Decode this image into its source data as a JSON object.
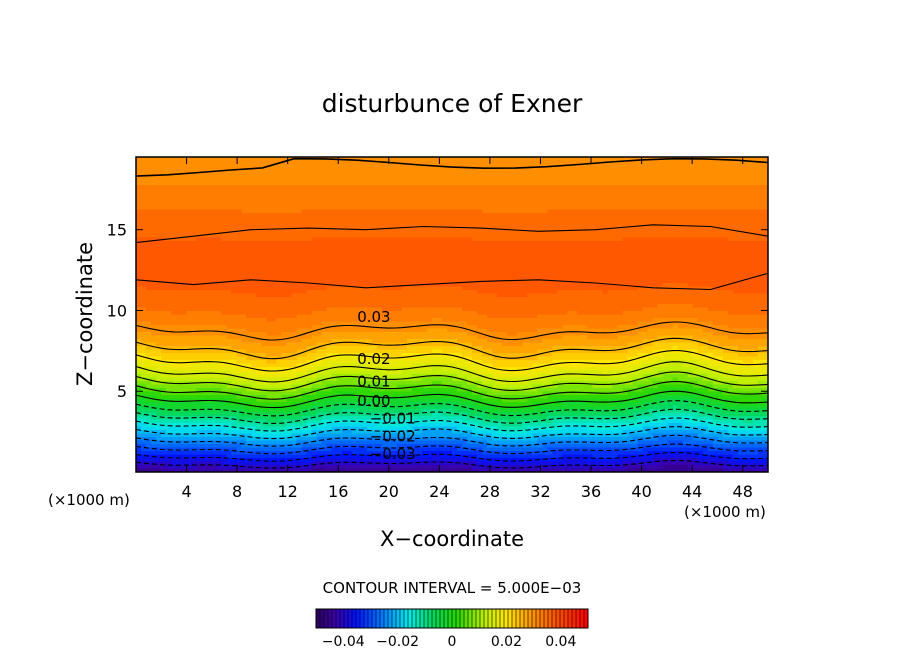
{
  "chart_data": {
    "type": "heatmap",
    "title": "disturbunce of Exner",
    "xlabel": "X−coordinate",
    "ylabel": "Z−coordinate",
    "x_unit_left": "(×1000 m)",
    "x_unit_right": "(×1000 m)",
    "xlim": [
      0,
      50
    ],
    "ylim": [
      0,
      19.5
    ],
    "x_ticks": [
      4,
      8,
      12,
      16,
      20,
      24,
      28,
      32,
      36,
      40,
      44,
      48
    ],
    "x_tick_labels": [
      "4",
      "8",
      "12",
      "16",
      "20",
      "24",
      "28",
      "32",
      "36",
      "40",
      "44",
      "48"
    ],
    "y_ticks": [
      5,
      10,
      15
    ],
    "y_tick_labels": [
      "5",
      "10",
      "15"
    ],
    "contour_interval_text": "CONTOUR INTERVAL = 5.000E−03",
    "contour_labels": [
      {
        "text": "0.03",
        "value": 0.03,
        "x": 17.5,
        "z": 9.6
      },
      {
        "text": "0.02",
        "value": 0.02,
        "x": 17.5,
        "z": 7.0
      },
      {
        "text": "0.01",
        "value": 0.01,
        "x": 17.5,
        "z": 5.6
      },
      {
        "text": "0.00",
        "value": 0.0,
        "x": 17.5,
        "z": 4.4
      },
      {
        "text": "−0.01",
        "value": -0.01,
        "x": 18.5,
        "z": 3.3
      },
      {
        "text": "−0.02",
        "value": -0.02,
        "x": 18.5,
        "z": 2.2
      },
      {
        "text": "−0.03",
        "value": -0.03,
        "x": 18.5,
        "z": 1.1
      }
    ],
    "colorbar": {
      "min": -0.05,
      "max": 0.05,
      "ticks": [
        -0.04,
        -0.02,
        0,
        0.02,
        0.04
      ],
      "tick_labels": [
        "−0.04",
        "−0.02",
        "0",
        "0.02",
        "0.04"
      ]
    },
    "field_profile": {
      "z": [
        0,
        1,
        2,
        3,
        4,
        5,
        6,
        7,
        8,
        9,
        10,
        11,
        12,
        13,
        14,
        15,
        16,
        17,
        18,
        19.5
      ],
      "value": [
        -0.045,
        -0.034,
        -0.024,
        -0.014,
        -0.004,
        0.005,
        0.014,
        0.021,
        0.027,
        0.031,
        0.034,
        0.036,
        0.037,
        0.0375,
        0.0368,
        0.0355,
        0.034,
        0.0325,
        0.031,
        0.029
      ]
    },
    "grid": false,
    "colormap": "rainbow (blue → cyan → green → yellow → orange → red)"
  }
}
